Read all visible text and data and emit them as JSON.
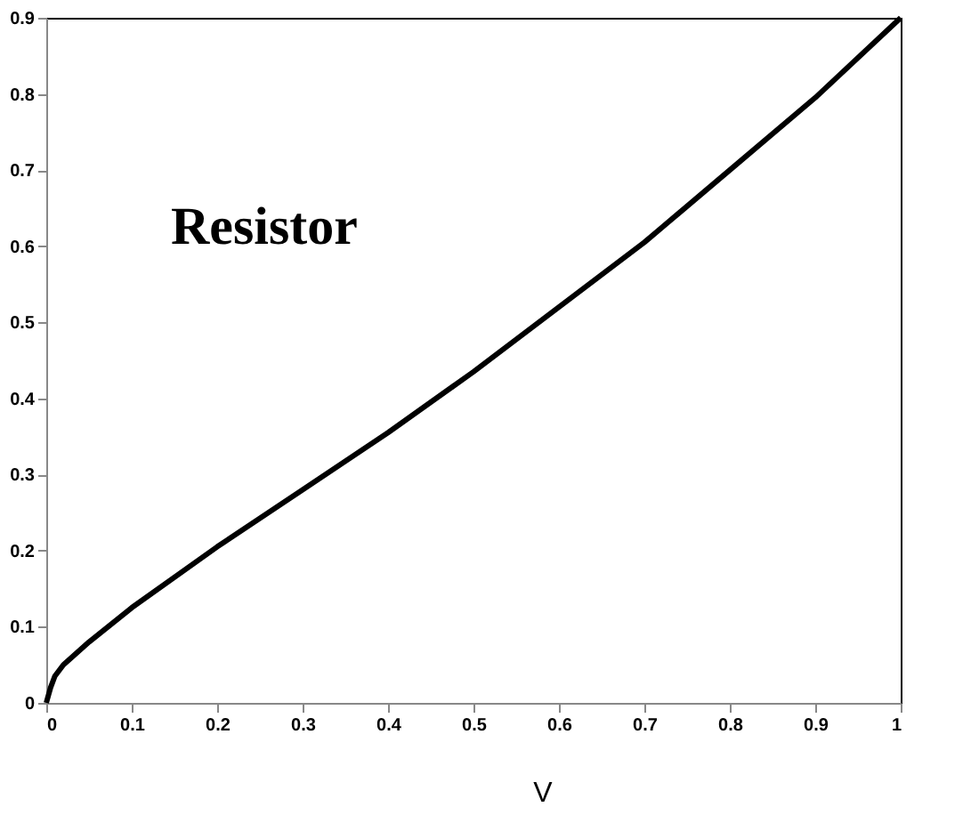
{
  "chart_data": {
    "type": "line",
    "xlabel": "V",
    "annotations": [
      "Resistor"
    ],
    "x": [
      0,
      0.005,
      0.01,
      0.02,
      0.05,
      0.1,
      0.2,
      0.3,
      0.4,
      0.5,
      0.6,
      0.7,
      0.8,
      0.9,
      1
    ],
    "series": [
      {
        "color": "#000000",
        "values": [
          0,
          0.02,
          0.035,
          0.05,
          0.08,
          0.125,
          0.205,
          0.28,
          0.355,
          0.435,
          0.52,
          0.605,
          0.7,
          0.795,
          0.9
        ]
      }
    ],
    "xlim": [
      0,
      1
    ],
    "xticks": [
      0,
      0.1,
      0.2,
      0.3,
      0.4,
      0.5,
      0.6,
      0.7,
      0.8,
      0.9,
      1
    ],
    "ylim": [
      0,
      0.9
    ],
    "yticks": [
      0,
      0.1,
      0.2,
      0.3,
      0.4,
      0.5,
      0.6,
      0.7,
      0.8,
      0.9
    ],
    "grid": false,
    "marker": "none",
    "line_style": "solid"
  }
}
